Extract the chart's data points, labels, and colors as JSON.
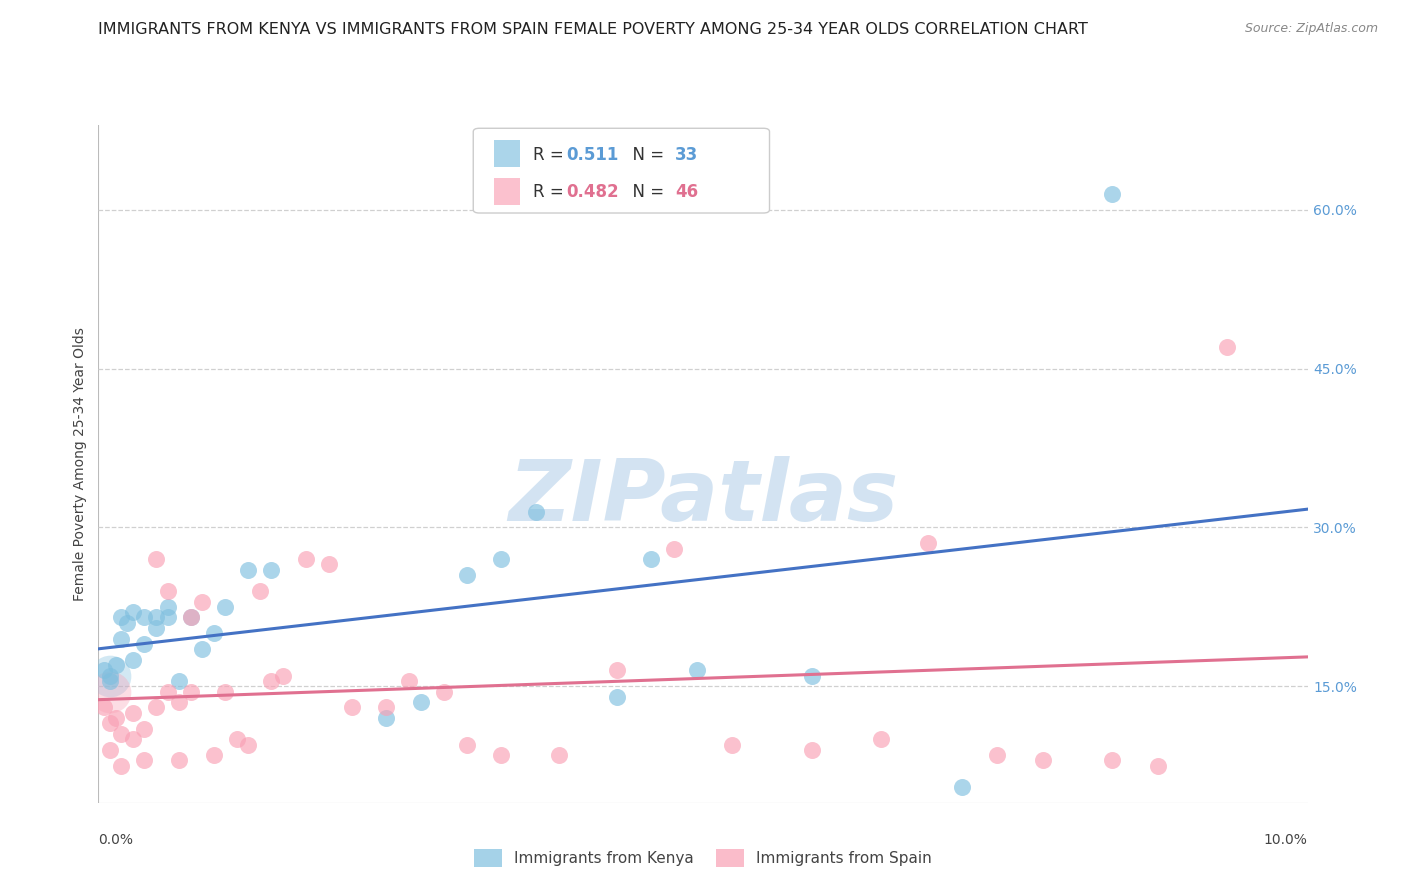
{
  "title": "IMMIGRANTS FROM KENYA VS IMMIGRANTS FROM SPAIN FEMALE POVERTY AMONG 25-34 YEAR OLDS CORRELATION CHART",
  "source": "Source: ZipAtlas.com",
  "ylabel": "Female Poverty Among 25-34 Year Olds",
  "ylabel_ticks": [
    "15.0%",
    "30.0%",
    "45.0%",
    "60.0%"
  ],
  "ylabel_tick_vals": [
    0.15,
    0.3,
    0.45,
    0.6
  ],
  "xlim": [
    0.0,
    0.105
  ],
  "ylim": [
    0.04,
    0.68
  ],
  "watermark": "ZIPatlas",
  "series1_label": "Immigrants from Kenya",
  "series2_label": "Immigrants from Spain",
  "series1_color": "#7fbfdf",
  "series2_color": "#f9a0b4",
  "line1_color": "#4472c4",
  "line2_color": "#e07090",
  "grid_color": "#d0d0d0",
  "background_color": "#ffffff",
  "title_fontsize": 11.5,
  "source_fontsize": 9,
  "axis_label_fontsize": 10,
  "tick_fontsize": 10,
  "legend_fontsize": 12,
  "kenya_x": [
    0.0005,
    0.001,
    0.001,
    0.0015,
    0.002,
    0.002,
    0.0025,
    0.003,
    0.003,
    0.004,
    0.004,
    0.005,
    0.005,
    0.006,
    0.006,
    0.007,
    0.008,
    0.009,
    0.01,
    0.011,
    0.013,
    0.015,
    0.025,
    0.028,
    0.032,
    0.035,
    0.038,
    0.045,
    0.048,
    0.052,
    0.062,
    0.075,
    0.088
  ],
  "kenya_y": [
    0.165,
    0.16,
    0.155,
    0.17,
    0.215,
    0.195,
    0.21,
    0.22,
    0.175,
    0.215,
    0.19,
    0.215,
    0.205,
    0.225,
    0.215,
    0.155,
    0.215,
    0.185,
    0.2,
    0.225,
    0.26,
    0.26,
    0.12,
    0.135,
    0.255,
    0.27,
    0.315,
    0.14,
    0.27,
    0.165,
    0.16,
    0.055,
    0.615
  ],
  "spain_x": [
    0.0005,
    0.001,
    0.001,
    0.0015,
    0.002,
    0.002,
    0.003,
    0.003,
    0.004,
    0.004,
    0.005,
    0.005,
    0.006,
    0.006,
    0.007,
    0.007,
    0.008,
    0.008,
    0.009,
    0.01,
    0.011,
    0.012,
    0.013,
    0.014,
    0.015,
    0.016,
    0.018,
    0.02,
    0.022,
    0.025,
    0.027,
    0.03,
    0.032,
    0.035,
    0.04,
    0.045,
    0.05,
    0.055,
    0.062,
    0.068,
    0.072,
    0.078,
    0.082,
    0.088,
    0.092,
    0.098
  ],
  "spain_y": [
    0.13,
    0.115,
    0.09,
    0.12,
    0.105,
    0.075,
    0.125,
    0.1,
    0.11,
    0.08,
    0.27,
    0.13,
    0.24,
    0.145,
    0.135,
    0.08,
    0.145,
    0.215,
    0.23,
    0.085,
    0.145,
    0.1,
    0.095,
    0.24,
    0.155,
    0.16,
    0.27,
    0.265,
    0.13,
    0.13,
    0.155,
    0.145,
    0.095,
    0.085,
    0.085,
    0.165,
    0.28,
    0.095,
    0.09,
    0.1,
    0.285,
    0.085,
    0.08,
    0.08,
    0.075,
    0.47
  ],
  "legend_box_color": "#f0f4ff",
  "legend_edge_color": "#cccccc"
}
